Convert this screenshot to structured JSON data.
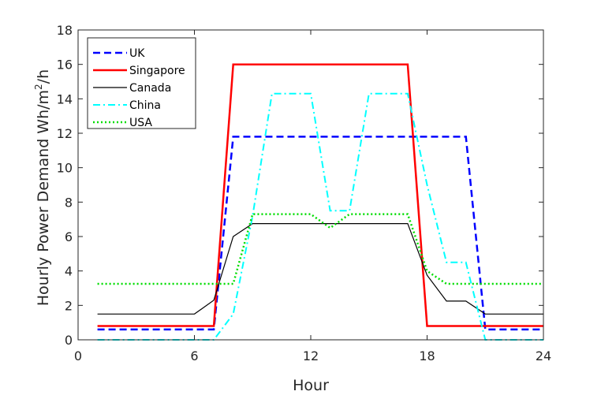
{
  "chart_data": {
    "type": "line",
    "title": "",
    "xlabel": "Hour",
    "ylabel_main": "Hourly Power Demand Wh/m",
    "ylabel_sup": "2",
    "ylabel_tail": "/h",
    "xlim": [
      0,
      24
    ],
    "ylim": [
      0,
      18
    ],
    "xticks": [
      0,
      6,
      12,
      18,
      24
    ],
    "yticks": [
      0,
      2,
      4,
      6,
      8,
      10,
      12,
      14,
      16,
      18
    ],
    "grid": false,
    "legend_position": "top-left",
    "x": [
      1,
      2,
      3,
      4,
      5,
      6,
      7,
      8,
      9,
      10,
      11,
      12,
      13,
      14,
      15,
      16,
      17,
      18,
      19,
      20,
      21,
      22,
      23,
      24
    ],
    "series": [
      {
        "name": "UK",
        "color": "#0000ff",
        "dash": "9,5",
        "width": 2.5,
        "values": [
          0.6,
          0.6,
          0.6,
          0.6,
          0.6,
          0.6,
          0.6,
          11.8,
          11.8,
          11.8,
          11.8,
          11.8,
          11.8,
          11.8,
          11.8,
          11.8,
          11.8,
          11.8,
          11.8,
          11.8,
          0.6,
          0.6,
          0.6,
          0.6
        ]
      },
      {
        "name": "Singapore",
        "color": "#ff0000",
        "dash": "",
        "width": 2.5,
        "values": [
          0.8,
          0.8,
          0.8,
          0.8,
          0.8,
          0.8,
          0.8,
          16,
          16,
          16,
          16,
          16,
          16,
          16,
          16,
          16,
          16,
          0.8,
          0.8,
          0.8,
          0.8,
          0.8,
          0.8,
          0.8
        ]
      },
      {
        "name": "Canada",
        "color": "#000000",
        "dash": "",
        "width": 1.2,
        "values": [
          1.5,
          1.5,
          1.5,
          1.5,
          1.5,
          1.5,
          2.3,
          6.0,
          6.75,
          6.75,
          6.75,
          6.75,
          6.75,
          6.75,
          6.75,
          6.75,
          6.75,
          3.75,
          2.25,
          2.25,
          1.5,
          1.5,
          1.5,
          1.5
        ]
      },
      {
        "name": "China",
        "color": "#00ffff",
        "dash": "9,4,2,4",
        "width": 2,
        "values": [
          0,
          0,
          0,
          0,
          0,
          0,
          0,
          1.5,
          7.2,
          14.3,
          14.3,
          14.3,
          7.5,
          7.5,
          14.3,
          14.3,
          14.3,
          9.0,
          4.5,
          4.5,
          0,
          0,
          0,
          0
        ]
      },
      {
        "name": "USA",
        "color": "#00dd00",
        "dash": "2,3",
        "width": 2.5,
        "values": [
          3.25,
          3.25,
          3.25,
          3.25,
          3.25,
          3.25,
          3.25,
          3.25,
          7.3,
          7.3,
          7.3,
          7.3,
          6.5,
          7.3,
          7.3,
          7.3,
          7.3,
          4.0,
          3.25,
          3.25,
          3.25,
          3.25,
          3.25,
          3.25
        ]
      }
    ]
  }
}
